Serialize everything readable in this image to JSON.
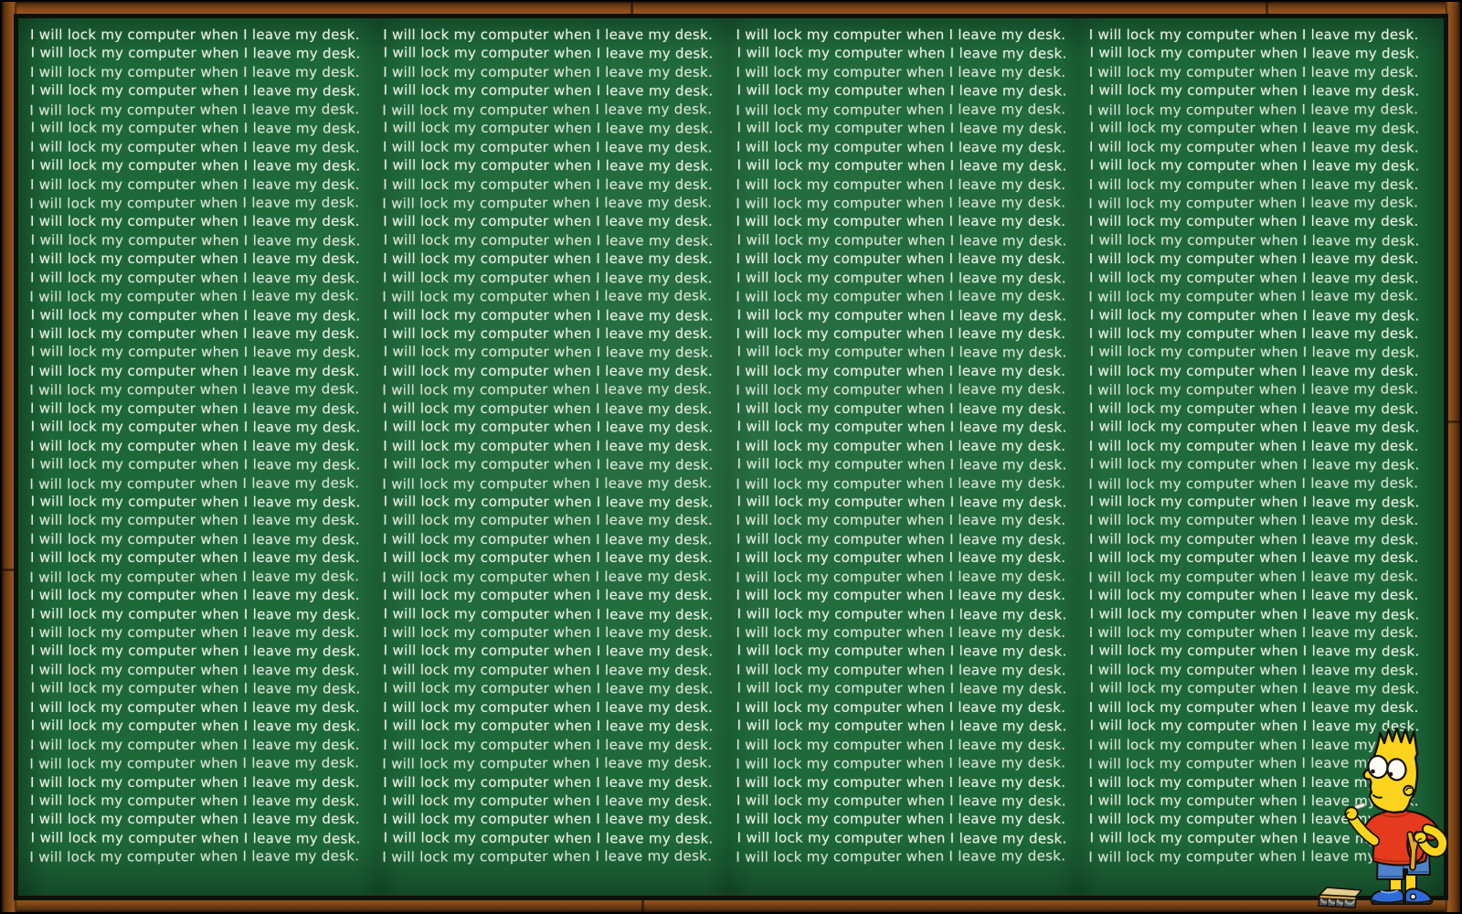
{
  "chalkboard": {
    "sentence": "I will lock my computer when I leave my desk.",
    "columns": 4,
    "rows_per_column": 45
  },
  "scene": {
    "character": "bart-simpson-writing-with-chalk",
    "props": [
      "chalk-stick",
      "chalkboard-eraser"
    ]
  },
  "colors": {
    "board_green": "#1d6839",
    "board_green_dark": "#155530",
    "frame_brown": "#7c4416",
    "frame_brown_highlight": "#96561f",
    "frame_outline": "#000000",
    "inner_border": "#0c120a",
    "chalk_white": "#e8eee4",
    "bart_yellow": "#fcd41d",
    "bart_shirt_red": "#e53a1e",
    "bart_shorts_blue": "#4e83cb",
    "bart_shoes_blue": "#2f6bd8",
    "eraser_tan": "#e4cf92",
    "eraser_felt_gray": "#9a9a96"
  }
}
